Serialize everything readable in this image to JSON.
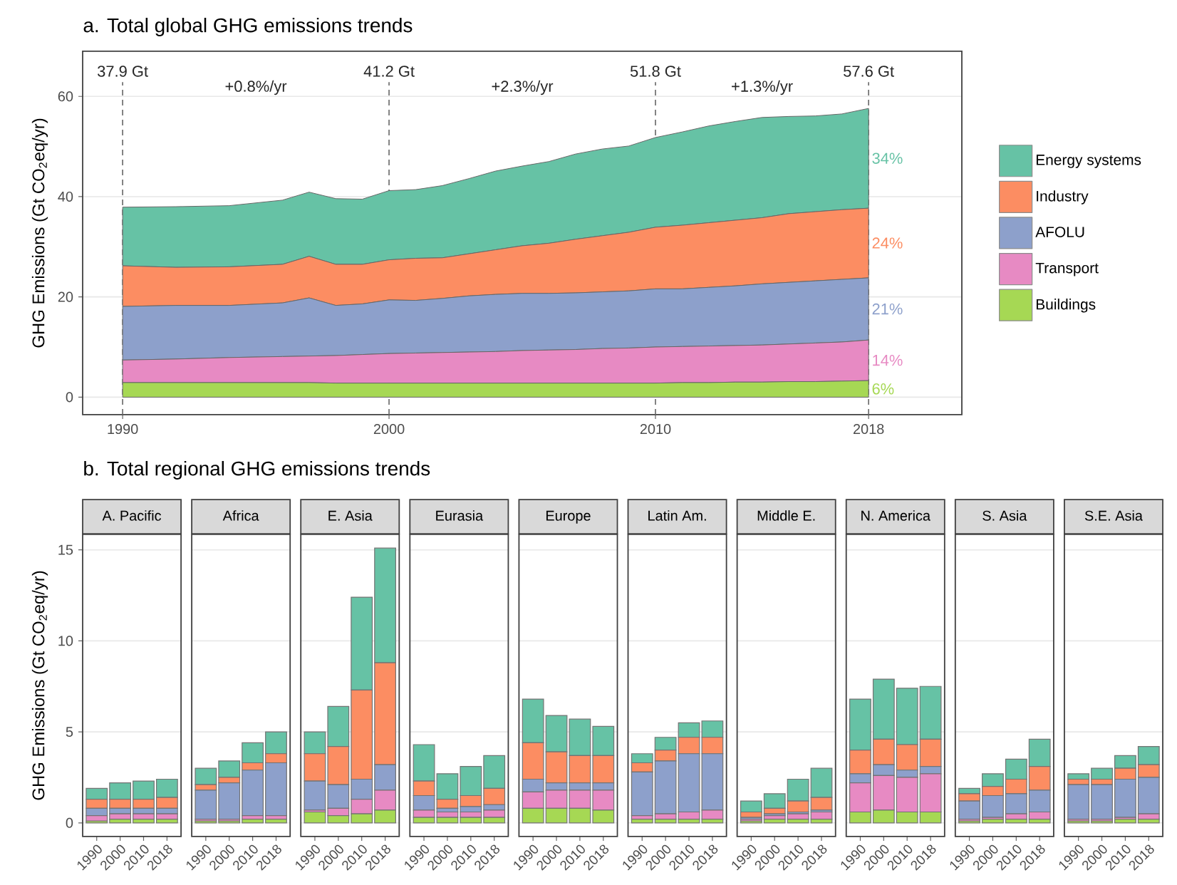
{
  "chart_data": [
    {
      "type": "area",
      "stacked": true,
      "title": "a. Total global GHG emissions trends",
      "ylabel": "GHG Emissions (Gt CO$_{2}$eq/yr)",
      "x": [
        1990,
        1992,
        1994,
        1996,
        1997,
        1998,
        1999,
        2000,
        2001,
        2002,
        2003,
        2004,
        2005,
        2006,
        2007,
        2008,
        2009,
        2010,
        2011,
        2012,
        2013,
        2014,
        2015,
        2016,
        2017,
        2018
      ],
      "series": [
        {
          "name": "Buildings",
          "color": "#a6d854",
          "values": [
            2.9,
            2.9,
            2.9,
            2.9,
            2.9,
            2.8,
            2.8,
            2.8,
            2.8,
            2.8,
            2.8,
            2.8,
            2.8,
            2.8,
            2.8,
            2.8,
            2.8,
            2.8,
            2.9,
            2.9,
            3.0,
            3.0,
            3.1,
            3.1,
            3.2,
            3.3
          ]
        },
        {
          "name": "Transport",
          "color": "#e78ac3",
          "values": [
            4.5,
            4.7,
            5.0,
            5.2,
            5.3,
            5.5,
            5.7,
            5.9,
            6.0,
            6.1,
            6.2,
            6.3,
            6.5,
            6.6,
            6.7,
            6.9,
            7.0,
            7.2,
            7.2,
            7.3,
            7.3,
            7.4,
            7.5,
            7.7,
            7.8,
            8.1
          ]
        },
        {
          "name": "AFOLU",
          "color": "#8da0cb",
          "values": [
            10.7,
            10.7,
            10.4,
            10.7,
            11.6,
            10.0,
            10.1,
            10.7,
            10.5,
            10.8,
            11.2,
            11.4,
            11.4,
            11.3,
            11.3,
            11.3,
            11.4,
            11.6,
            11.5,
            11.7,
            11.9,
            12.2,
            12.3,
            12.4,
            12.5,
            12.4
          ]
        },
        {
          "name": "Industry",
          "color": "#fc8d62",
          "values": [
            8.1,
            7.6,
            7.7,
            7.7,
            8.3,
            8.2,
            7.9,
            8.0,
            8.4,
            8.1,
            8.4,
            8.9,
            9.5,
            10.0,
            10.7,
            11.2,
            11.7,
            12.3,
            12.7,
            12.9,
            13.1,
            13.2,
            13.7,
            13.8,
            13.9,
            13.9
          ]
        },
        {
          "name": "Energy systems",
          "color": "#66c2a5",
          "values": [
            11.7,
            12.1,
            12.2,
            12.8,
            12.8,
            13.1,
            13.0,
            13.8,
            13.7,
            14.4,
            15.0,
            15.7,
            15.9,
            16.3,
            17.0,
            17.3,
            17.2,
            17.9,
            18.6,
            19.3,
            19.7,
            20.0,
            19.4,
            19.1,
            19.1,
            19.9
          ]
        }
      ],
      "xlim": [
        1988.5,
        2021.5
      ],
      "ylim": [
        -3.5,
        69
      ],
      "xticks": [
        1990,
        2000,
        2010,
        2018
      ],
      "yticks": [
        0,
        20,
        40,
        60
      ],
      "grid": "y",
      "legend": "right",
      "ref_lines": [
        {
          "axis": "x",
          "value": 1990,
          "label": "37.9 Gt",
          "line_style": "dashed",
          "color": "#666666"
        },
        {
          "axis": "x",
          "value": 2000,
          "label": "41.2 Gt",
          "line_style": "dashed",
          "color": "#666666"
        },
        {
          "axis": "x",
          "value": 2010,
          "label": "51.8 Gt",
          "line_style": "dashed",
          "color": "#666666"
        },
        {
          "axis": "x",
          "value": 2018,
          "label": "57.6 Gt",
          "line_style": "dashed",
          "color": "#666666"
        }
      ],
      "annotations": [
        "+0.8%/yr",
        "+2.3%/yr",
        "+1.3%/yr",
        "34%",
        "24%",
        "21%",
        "14%",
        "6%"
      ]
    },
    {
      "type": "bar",
      "stacked": true,
      "title": "b. Total regional GHG emissions trends",
      "subtitle": "A. Pacific",
      "ylabel": "GHG Emissions (Gt CO$_{2}$eq/yr)",
      "categories": [
        "1990",
        "2000",
        "2010",
        "2018"
      ],
      "series": [
        {
          "color": "#a6d854",
          "values": [
            0.1,
            0.2,
            0.2,
            0.2
          ]
        },
        {
          "color": "#e78ac3",
          "values": [
            0.3,
            0.3,
            0.3,
            0.3
          ]
        },
        {
          "color": "#8da0cb",
          "values": [
            0.4,
            0.3,
            0.3,
            0.3
          ]
        },
        {
          "color": "#fc8d62",
          "values": [
            0.5,
            0.5,
            0.5,
            0.6
          ]
        },
        {
          "color": "#66c2a5",
          "values": [
            0.6,
            0.9,
            1.0,
            1.0
          ]
        }
      ],
      "ylim": [
        -0.75,
        15.85
      ],
      "yticks": [
        0,
        5,
        10,
        15
      ],
      "grid": "y"
    },
    {
      "type": "bar",
      "stacked": true,
      "subtitle": "Africa",
      "categories": [
        "1990",
        "2000",
        "2010",
        "2018"
      ],
      "series": [
        {
          "color": "#a6d854",
          "values": [
            0.1,
            0.1,
            0.2,
            0.2
          ]
        },
        {
          "color": "#e78ac3",
          "values": [
            0.1,
            0.1,
            0.2,
            0.2
          ]
        },
        {
          "color": "#8da0cb",
          "values": [
            1.6,
            2.0,
            2.5,
            2.9
          ]
        },
        {
          "color": "#fc8d62",
          "values": [
            0.3,
            0.3,
            0.4,
            0.5
          ]
        },
        {
          "color": "#66c2a5",
          "values": [
            0.9,
            0.9,
            1.1,
            1.2
          ]
        }
      ],
      "ylim": [
        -0.75,
        15.85
      ],
      "yticks": [
        0,
        5,
        10,
        15
      ],
      "grid": "y",
      "tick_labels": "x"
    },
    {
      "type": "bar",
      "stacked": true,
      "subtitle": "E. Asia",
      "categories": [
        "1990",
        "2000",
        "2010",
        "2018"
      ],
      "series": [
        {
          "color": "#a6d854",
          "values": [
            0.6,
            0.4,
            0.5,
            0.7
          ]
        },
        {
          "color": "#e78ac3",
          "values": [
            0.1,
            0.4,
            0.8,
            1.1
          ]
        },
        {
          "color": "#8da0cb",
          "values": [
            1.6,
            1.3,
            1.1,
            1.4
          ]
        },
        {
          "color": "#fc8d62",
          "values": [
            1.5,
            2.1,
            4.9,
            5.6
          ]
        },
        {
          "color": "#66c2a5",
          "values": [
            1.2,
            2.2,
            5.1,
            6.3
          ]
        }
      ],
      "ylim": [
        -0.75,
        15.85
      ],
      "yticks": [
        0,
        5,
        10,
        15
      ],
      "grid": "y",
      "tick_labels": "x"
    },
    {
      "type": "bar",
      "stacked": true,
      "subtitle": "Eurasia",
      "categories": [
        "1990",
        "2000",
        "2010",
        "2018"
      ],
      "series": [
        {
          "color": "#a6d854",
          "values": [
            0.3,
            0.3,
            0.3,
            0.3
          ]
        },
        {
          "color": "#e78ac3",
          "values": [
            0.4,
            0.3,
            0.3,
            0.4
          ]
        },
        {
          "color": "#8da0cb",
          "values": [
            0.8,
            0.2,
            0.3,
            0.3
          ]
        },
        {
          "color": "#fc8d62",
          "values": [
            0.8,
            0.5,
            0.6,
            0.9
          ]
        },
        {
          "color": "#66c2a5",
          "values": [
            2.0,
            1.4,
            1.6,
            1.8
          ]
        }
      ],
      "ylim": [
        -0.75,
        15.85
      ],
      "yticks": [
        0,
        5,
        10,
        15
      ],
      "grid": "y",
      "tick_labels": "x"
    },
    {
      "type": "bar",
      "stacked": true,
      "subtitle": "Europe",
      "categories": [
        "1990",
        "2000",
        "2010",
        "2018"
      ],
      "series": [
        {
          "color": "#a6d854",
          "values": [
            0.8,
            0.8,
            0.8,
            0.7
          ]
        },
        {
          "color": "#e78ac3",
          "values": [
            0.9,
            1.0,
            1.0,
            1.1
          ]
        },
        {
          "color": "#8da0cb",
          "values": [
            0.7,
            0.4,
            0.4,
            0.4
          ]
        },
        {
          "color": "#fc8d62",
          "values": [
            2.0,
            1.7,
            1.5,
            1.5
          ]
        },
        {
          "color": "#66c2a5",
          "values": [
            2.4,
            2.0,
            2.0,
            1.6
          ]
        }
      ],
      "ylim": [
        -0.75,
        15.85
      ],
      "yticks": [
        0,
        5,
        10,
        15
      ],
      "grid": "y",
      "tick_labels": "x"
    },
    {
      "type": "bar",
      "stacked": true,
      "subtitle": "Latin Am.",
      "categories": [
        "1990",
        "2000",
        "2010",
        "2018"
      ],
      "series": [
        {
          "color": "#a6d854",
          "values": [
            0.2,
            0.2,
            0.2,
            0.2
          ]
        },
        {
          "color": "#e78ac3",
          "values": [
            0.2,
            0.3,
            0.4,
            0.5
          ]
        },
        {
          "color": "#8da0cb",
          "values": [
            2.4,
            2.9,
            3.2,
            3.1
          ]
        },
        {
          "color": "#fc8d62",
          "values": [
            0.5,
            0.6,
            0.9,
            0.9
          ]
        },
        {
          "color": "#66c2a5",
          "values": [
            0.5,
            0.7,
            0.8,
            0.9
          ]
        }
      ],
      "ylim": [
        -0.75,
        15.85
      ],
      "yticks": [
        0,
        5,
        10,
        15
      ],
      "grid": "y",
      "tick_labels": "x"
    },
    {
      "type": "bar",
      "stacked": true,
      "subtitle": "Middle E.",
      "categories": [
        "1990",
        "2000",
        "2010",
        "2018"
      ],
      "series": [
        {
          "color": "#a6d854",
          "values": [
            0.1,
            0.2,
            0.2,
            0.2
          ]
        },
        {
          "color": "#e78ac3",
          "values": [
            0.1,
            0.2,
            0.3,
            0.4
          ]
        },
        {
          "color": "#8da0cb",
          "values": [
            0.1,
            0.1,
            0.1,
            0.1
          ]
        },
        {
          "color": "#fc8d62",
          "values": [
            0.3,
            0.3,
            0.6,
            0.7
          ]
        },
        {
          "color": "#66c2a5",
          "values": [
            0.6,
            0.8,
            1.2,
            1.6
          ]
        }
      ],
      "ylim": [
        -0.75,
        15.85
      ],
      "yticks": [
        0,
        5,
        10,
        15
      ],
      "grid": "y",
      "tick_labels": "x"
    },
    {
      "type": "bar",
      "stacked": true,
      "subtitle": "N. America",
      "categories": [
        "1990",
        "2000",
        "2010",
        "2018"
      ],
      "series": [
        {
          "color": "#a6d854",
          "values": [
            0.6,
            0.7,
            0.6,
            0.6
          ]
        },
        {
          "color": "#e78ac3",
          "values": [
            1.6,
            1.9,
            1.9,
            2.1
          ]
        },
        {
          "color": "#8da0cb",
          "values": [
            0.5,
            0.6,
            0.4,
            0.4
          ]
        },
        {
          "color": "#fc8d62",
          "values": [
            1.3,
            1.4,
            1.4,
            1.5
          ]
        },
        {
          "color": "#66c2a5",
          "values": [
            2.8,
            3.3,
            3.1,
            2.9
          ]
        }
      ],
      "ylim": [
        -0.75,
        15.85
      ],
      "yticks": [
        0,
        5,
        10,
        15
      ],
      "grid": "y",
      "tick_labels": "x"
    },
    {
      "type": "bar",
      "stacked": true,
      "subtitle": "S. Asia",
      "categories": [
        "1990",
        "2000",
        "2010",
        "2018"
      ],
      "series": [
        {
          "color": "#a6d854",
          "values": [
            0.1,
            0.2,
            0.2,
            0.2
          ]
        },
        {
          "color": "#e78ac3",
          "values": [
            0.1,
            0.1,
            0.3,
            0.4
          ]
        },
        {
          "color": "#8da0cb",
          "values": [
            1.0,
            1.2,
            1.1,
            1.2
          ]
        },
        {
          "color": "#fc8d62",
          "values": [
            0.4,
            0.5,
            0.8,
            1.3
          ]
        },
        {
          "color": "#66c2a5",
          "values": [
            0.3,
            0.7,
            1.1,
            1.5
          ]
        }
      ],
      "ylim": [
        -0.75,
        15.85
      ],
      "yticks": [
        0,
        5,
        10,
        15
      ],
      "grid": "y",
      "tick_labels": "x"
    },
    {
      "type": "bar",
      "stacked": true,
      "subtitle": "S.E. Asia",
      "categories": [
        "1990",
        "2000",
        "2010",
        "2018"
      ],
      "series": [
        {
          "color": "#a6d854",
          "values": [
            0.1,
            0.1,
            0.2,
            0.2
          ]
        },
        {
          "color": "#e78ac3",
          "values": [
            0.1,
            0.1,
            0.1,
            0.3
          ]
        },
        {
          "color": "#8da0cb",
          "values": [
            1.9,
            1.9,
            2.1,
            2.0
          ]
        },
        {
          "color": "#fc8d62",
          "values": [
            0.3,
            0.3,
            0.6,
            0.7
          ]
        },
        {
          "color": "#66c2a5",
          "values": [
            0.3,
            0.6,
            0.7,
            1.0
          ]
        }
      ],
      "ylim": [
        -0.75,
        15.85
      ],
      "yticks": [
        0,
        5,
        10,
        15
      ],
      "grid": "y",
      "tick_labels": "x"
    }
  ]
}
